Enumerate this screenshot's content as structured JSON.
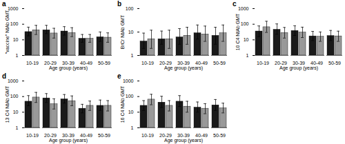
{
  "chart_data": [
    {
      "type": "bar",
      "title": "a",
      "xlabel": "Age group (years)",
      "ylabel": "\"vaccine\" NtAb GMT",
      "categories": [
        "10-19",
        "20-29",
        "30-39",
        "40-49",
        "50-59"
      ],
      "series": [
        {
          "color": "#1a1a1a",
          "values": [
            32,
            42,
            35,
            12,
            15
          ],
          "error_low": [
            18,
            25,
            20,
            7,
            8
          ],
          "error_high": [
            65,
            85,
            70,
            22,
            32
          ]
        },
        {
          "color": "#999999",
          "values": [
            42,
            26,
            28,
            12,
            14
          ],
          "error_low": [
            22,
            13,
            16,
            7,
            7
          ],
          "error_high": [
            85,
            55,
            60,
            22,
            28
          ]
        }
      ],
      "ylim": [
        1,
        1000
      ],
      "yticks": [
        1,
        10,
        100,
        1000
      ],
      "log": "y",
      "grid": false
    },
    {
      "type": "bar",
      "title": "b",
      "xlabel": "Age group (years)",
      "ylabel": "BrCr NtAb GMT",
      "categories": [
        "10-19",
        "20-29",
        "30-39",
        "40-49",
        "50-59"
      ],
      "series": [
        {
          "color": "#1a1a1a",
          "values": [
            4,
            5,
            6,
            9,
            7
          ],
          "error_low": [
            2,
            3,
            3,
            5,
            3
          ],
          "error_high": [
            9,
            11,
            14,
            20,
            16
          ]
        },
        {
          "color": "#999999",
          "values": [
            5,
            5,
            7,
            8,
            9
          ],
          "error_low": [
            2,
            2,
            3,
            4,
            4
          ],
          "error_high": [
            12,
            12,
            16,
            18,
            20
          ]
        }
      ],
      "ylim": [
        1,
        100
      ],
      "yticks": [
        1,
        10,
        100
      ],
      "log": "y",
      "grid": false
    },
    {
      "type": "bar",
      "title": "c",
      "xlabel": "Age group (years)",
      "ylabel": "10 C4 NtAb GMT",
      "categories": [
        "10-19",
        "20-29",
        "30-39",
        "40-49",
        "50-59"
      ],
      "series": [
        {
          "color": "#1a1a1a",
          "values": [
            35,
            45,
            38,
            17,
            18
          ],
          "error_low": [
            16,
            23,
            19,
            9,
            9
          ],
          "error_high": [
            78,
            105,
            80,
            35,
            40
          ]
        },
        {
          "color": "#999999",
          "values": [
            65,
            28,
            30,
            16,
            17
          ],
          "error_low": [
            30,
            13,
            14,
            8,
            8
          ],
          "error_high": [
            155,
            62,
            65,
            32,
            36
          ]
        }
      ],
      "ylim": [
        1,
        1000
      ],
      "yticks": [
        1,
        10,
        100,
        1000
      ],
      "log": "y",
      "grid": false
    },
    {
      "type": "bar",
      "title": "d",
      "xlabel": "Age group (years)",
      "ylabel": "13 C4 NtAb GMT",
      "categories": [
        "10-19",
        "20-29",
        "30-39",
        "40-49",
        "50-59"
      ],
      "series": [
        {
          "color": "#1a1a1a",
          "values": [
            48,
            78,
            68,
            17,
            26
          ],
          "error_low": [
            26,
            42,
            38,
            9,
            13
          ],
          "error_high": [
            115,
            155,
            135,
            32,
            60
          ]
        },
        {
          "color": "#999999",
          "values": [
            88,
            33,
            52,
            26,
            26
          ],
          "error_low": [
            42,
            16,
            26,
            13,
            12
          ],
          "error_high": [
            185,
            72,
            110,
            52,
            55
          ]
        }
      ],
      "ylim": [
        1,
        1000
      ],
      "yticks": [
        1,
        10,
        100,
        1000
      ],
      "log": "y",
      "grid": false
    },
    {
      "type": "bar",
      "title": "e",
      "xlabel": "Age group (years)",
      "ylabel": "16 C4 NtAb GMT",
      "categories": [
        "10-19",
        "20-29",
        "30-39",
        "40-49",
        "50-59"
      ],
      "series": [
        {
          "color": "#1a1a1a",
          "values": [
            26,
            42,
            48,
            20,
            28
          ],
          "error_low": [
            13,
            20,
            23,
            10,
            13
          ],
          "error_high": [
            55,
            105,
            115,
            45,
            65
          ]
        },
        {
          "color": "#999999",
          "values": [
            65,
            26,
            23,
            17,
            18
          ],
          "error_low": [
            30,
            12,
            10,
            8,
            9
          ],
          "error_high": [
            140,
            55,
            50,
            35,
            38
          ]
        }
      ],
      "ylim": [
        1,
        1000
      ],
      "yticks": [
        1,
        10,
        100,
        1000
      ],
      "log": "y",
      "grid": false
    }
  ]
}
